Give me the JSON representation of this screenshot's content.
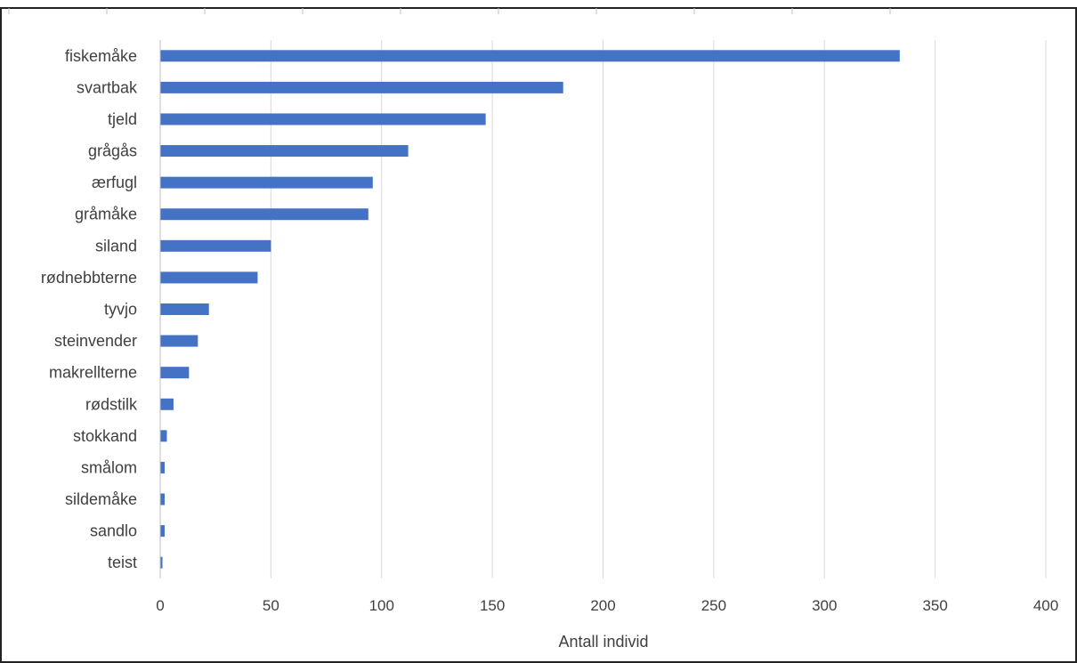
{
  "chart_data": {
    "type": "bar",
    "orientation": "horizontal",
    "categories": [
      "fiskemåke",
      "svartbak",
      "tjeld",
      "grågås",
      "ærfugl",
      "gråmåke",
      "siland",
      "rødnebbterne",
      "tyvjo",
      "steinvender",
      "makrellterne",
      "rødstilk",
      "stokkand",
      "smålom",
      "sildemåke",
      "sandlo",
      "teist"
    ],
    "values": [
      334,
      182,
      147,
      112,
      96,
      94,
      50,
      44,
      22,
      17,
      13,
      6,
      3,
      2,
      2,
      2,
      1
    ],
    "title": "",
    "xlabel": "Antall individ",
    "ylabel": "",
    "xlim": [
      0,
      400
    ],
    "xticks": [
      0,
      50,
      100,
      150,
      200,
      250,
      300,
      350,
      400
    ],
    "xtick_labels": [
      "0",
      "50",
      "100",
      "150",
      "200",
      "250",
      "300",
      "350",
      "400"
    ],
    "grid": "vertical",
    "legend": "none",
    "bar_color": "#4472c4",
    "grid_color": "#d9d9d9"
  }
}
